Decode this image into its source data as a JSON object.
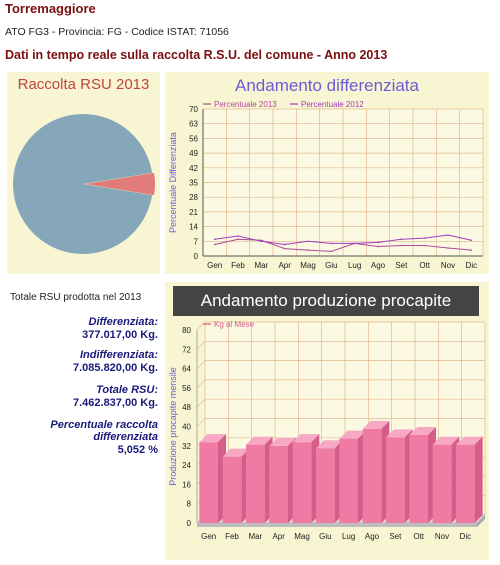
{
  "header": {
    "town": "Torremaggiore",
    "subtitle": "ATO FG3 - Provincia: FG - Codice ISTAT: 71056",
    "heading": "Dati in tempo reale sulla raccolta R.S.U. del comune - Anno 2013"
  },
  "stats": {
    "total_label": "Totale RSU prodotta nel 2013",
    "differenziata_label": "Differenziata:",
    "differenziata_value": "377.017,00 Kg.",
    "indifferenziata_label": "Indifferenziata:",
    "indifferenziata_value": "7.085.820,00 Kg.",
    "totale_label": "Totale RSU:",
    "totale_value": "7.462.837,00 Kg.",
    "percent_label_1": "Percentuale raccolta",
    "percent_label_2": "differenziata",
    "percent_value": "5,052 %"
  },
  "colors": {
    "pie_indifferenziata": "#85a7b9",
    "pie_differenziata": "#e07b78",
    "line_2013": "#b04a98",
    "line_2012": "#a23cc0",
    "bar_front": "#ef7aa4",
    "bar_top": "#f7a9c4",
    "bar_side": "#d65d8a"
  },
  "chart_data": [
    {
      "type": "pie",
      "title": "Raccolta RSU 2013",
      "slices": [
        {
          "name": "Indifferenziata",
          "value": 7085820
        },
        {
          "name": "Differenziata",
          "value": 377017
        }
      ]
    },
    {
      "type": "line",
      "title": "Andamento differenziata",
      "ylabel": "Percentuale Differenziata",
      "xlabel": "",
      "categories": [
        "Gen",
        "Feb",
        "Mar",
        "Apr",
        "Mag",
        "Giu",
        "Lug",
        "Ago",
        "Set",
        "Ott",
        "Nov",
        "Dic"
      ],
      "yticks": [
        0,
        7,
        14,
        21,
        28,
        35,
        42,
        49,
        56,
        63,
        70
      ],
      "ylim": [
        0,
        70
      ],
      "grid": true,
      "legend": "top",
      "series": [
        {
          "name": "Percentuale 2013",
          "values": [
            5.5,
            8,
            7.5,
            3.5,
            2.8,
            2.2,
            6,
            4.5,
            5,
            5,
            3.8,
            2.8
          ]
        },
        {
          "name": "Percentuale 2012",
          "values": [
            8,
            9.5,
            7,
            5.5,
            7,
            6,
            6,
            6.5,
            8,
            8.5,
            10,
            7.5
          ]
        }
      ]
    },
    {
      "type": "bar",
      "title": "Andamento produzione procapite",
      "ylabel": "Produzione procapite mensile",
      "xlabel": "",
      "categories": [
        "Gen",
        "Feb",
        "Mar",
        "Apr",
        "Mag",
        "Giu",
        "Lug",
        "Ago",
        "Set",
        "Ott",
        "Nov",
        "Dic"
      ],
      "yticks": [
        0,
        8,
        16,
        24,
        32,
        40,
        48,
        56,
        64,
        72,
        80
      ],
      "ylim": [
        0,
        80
      ],
      "grid": true,
      "legend": "top-left",
      "series": [
        {
          "name": "Kg al Mese",
          "values": [
            33.5,
            27.5,
            32.5,
            32,
            33.5,
            31,
            35,
            39,
            35.5,
            36.5,
            32.5,
            32.5
          ]
        }
      ]
    }
  ]
}
